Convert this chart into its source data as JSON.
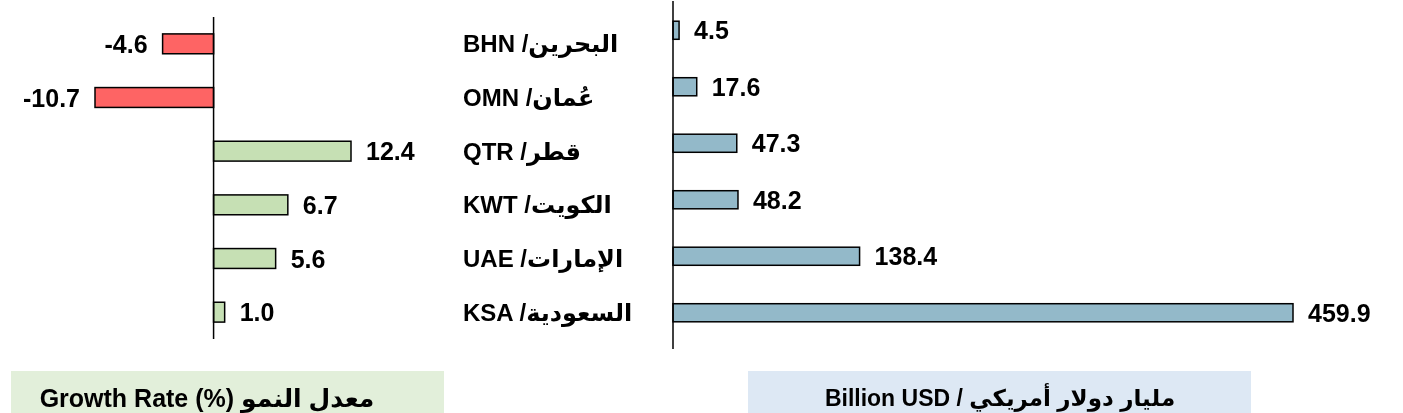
{
  "chart_data": [
    {
      "type": "bar",
      "orientation": "horizontal",
      "categories": [
        "BHN /البحرين",
        "OMN /عُمان",
        "QTR /قطر",
        "KWT /الكويت",
        "UAE /الإمارات",
        "KSA /السعودية"
      ],
      "values": [
        -4.6,
        -10.7,
        12.4,
        6.7,
        5.6,
        1.0
      ],
      "colors": [
        "#fe6464",
        "#fe6464",
        "#c6e0b4",
        "#c6e0b4",
        "#c6e0b4",
        "#c6e0b4"
      ],
      "value_labels": [
        "-4.6",
        "-10.7",
        "12.4",
        "6.7",
        "5.6",
        "1.0"
      ],
      "xlabel": "Growth Rate (%) معدل النمو",
      "tick_labels": "y"
    },
    {
      "type": "bar",
      "orientation": "horizontal",
      "categories": [
        null,
        null,
        null,
        null,
        null,
        null
      ],
      "values": [
        4.5,
        17.6,
        47.3,
        48.2,
        138.4,
        459.9
      ],
      "color": "#93b9c9",
      "data_labels": true,
      "xlabel": "Billion USD / مليار دولار أمريكي",
      "tick_labels": false
    }
  ]
}
